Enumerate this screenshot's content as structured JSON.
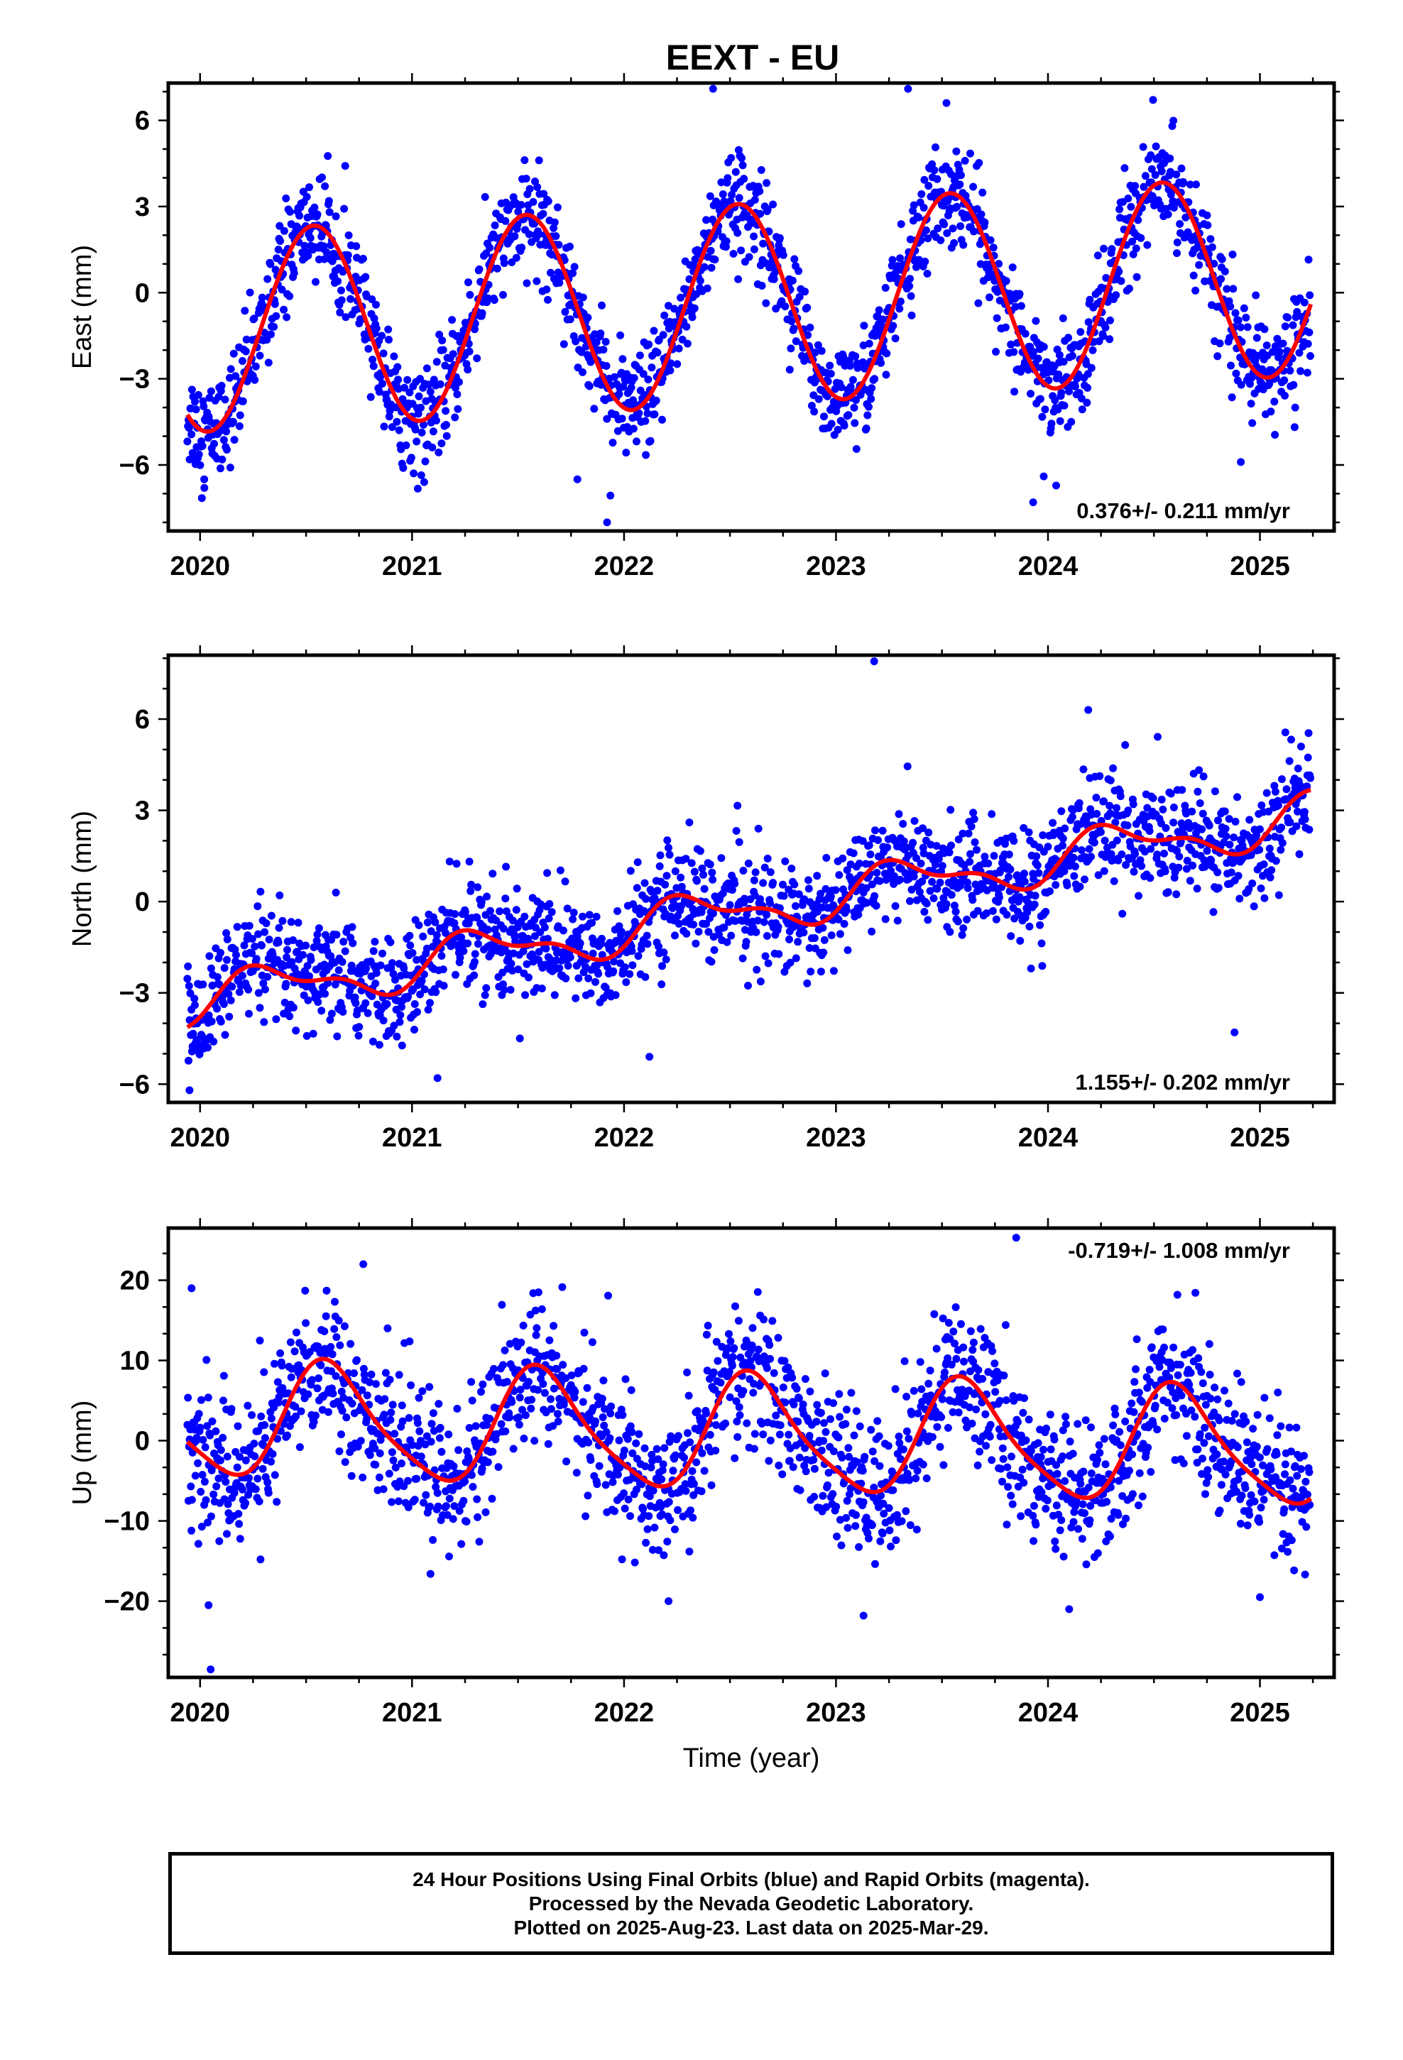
{
  "title": "EEXT - EU",
  "colors": {
    "data_points": "#0000ff",
    "model_fit": "#ff0000",
    "frame": "#000000"
  },
  "footer": {
    "line1": "24 Hour Positions Using Final Orbits (blue) and Rapid Orbits (magenta).",
    "line2": "Processed by the Nevada Geodetic Laboratory.",
    "line3": "Plotted on 2025-Aug-23. Last data on 2025-Mar-29."
  },
  "chart_data": [
    {
      "type": "scatter",
      "component": "east",
      "ylabel": "East (mm)",
      "xlabel": "",
      "xlim": [
        2019.85,
        2025.35
      ],
      "ylim": [
        -8.3,
        7.3
      ],
      "xticks": [
        2020,
        2021,
        2022,
        2023,
        2024,
        2025
      ],
      "yticks": [
        -6,
        -3,
        0,
        3,
        6
      ],
      "rate_label": "0.376+/- 0.211 mm/yr",
      "rate_position": "bottom-right",
      "data_range": [
        2019.94,
        2025.24
      ],
      "model": {
        "offset": -0.42,
        "rate": 0.376,
        "ref_year": 2022.5,
        "annual_cos": -3.4,
        "annual_sin": -0.8,
        "semi_cos": 0.0,
        "semi_sin": 0.0
      },
      "noise_sd": 0.9,
      "outliers": [
        [
          2020.02,
          -6.8
        ],
        [
          2021.92,
          -8.0
        ],
        [
          2021.78,
          -6.5
        ],
        [
          2022.42,
          7.1
        ],
        [
          2023.34,
          7.1
        ],
        [
          2023.93,
          -7.3
        ],
        [
          2023.98,
          -6.4
        ],
        [
          2024.91,
          -5.9
        ]
      ]
    },
    {
      "type": "scatter",
      "component": "north",
      "ylabel": "North (mm)",
      "xlabel": "",
      "xlim": [
        2019.85,
        2025.35
      ],
      "ylim": [
        -6.6,
        8.1
      ],
      "xticks": [
        2020,
        2021,
        2022,
        2023,
        2024,
        2025
      ],
      "yticks": [
        -6,
        -3,
        0,
        3,
        6
      ],
      "rate_label": "1.155+/- 0.202 mm/yr",
      "rate_position": "bottom-right",
      "data_range": [
        2019.94,
        2025.24
      ],
      "model": {
        "offset": -0.35,
        "rate": 1.155,
        "ref_year": 2022.5,
        "annual_cos": -0.3,
        "annual_sin": 0.6,
        "semi_cos": -0.25,
        "semi_sin": 0.2
      },
      "noise_sd": 0.9,
      "outliers": [
        [
          2023.18,
          7.9
        ],
        [
          2024.19,
          6.3
        ],
        [
          2021.12,
          -5.8
        ],
        [
          2022.12,
          -5.1
        ],
        [
          2024.88,
          -4.3
        ],
        [
          2019.95,
          -6.2
        ],
        [
          2023.92,
          -2.2
        ]
      ]
    },
    {
      "type": "scatter",
      "component": "up",
      "ylabel": "Up (mm)",
      "xlabel": "Time (year)",
      "xlim": [
        2019.85,
        2025.35
      ],
      "ylim": [
        -29.5,
        26.5
      ],
      "xticks": [
        2020,
        2021,
        2022,
        2023,
        2024,
        2025
      ],
      "yticks": [
        -20,
        -10,
        0,
        10,
        20
      ],
      "rate_label": "-0.719+/- 1.008 mm/yr",
      "rate_position": "top-right",
      "data_range": [
        2019.94,
        2025.24
      ],
      "model": {
        "offset": 0.8,
        "rate": -0.719,
        "ref_year": 2022.5,
        "annual_cos": -5.3,
        "annual_sin": -4.6,
        "semi_cos": 1.2,
        "semi_sin": 0.6
      },
      "noise_sd": 4.5,
      "outliers": [
        [
          2019.96,
          19.0
        ],
        [
          2020.05,
          -28.5
        ],
        [
          2020.04,
          -20.5
        ],
        [
          2020.77,
          22.0
        ],
        [
          2023.85,
          25.3
        ],
        [
          2023.13,
          -21.8
        ],
        [
          2022.21,
          -20.0
        ],
        [
          2024.1,
          -21.0
        ],
        [
          2025.0,
          -19.5
        ]
      ]
    }
  ]
}
